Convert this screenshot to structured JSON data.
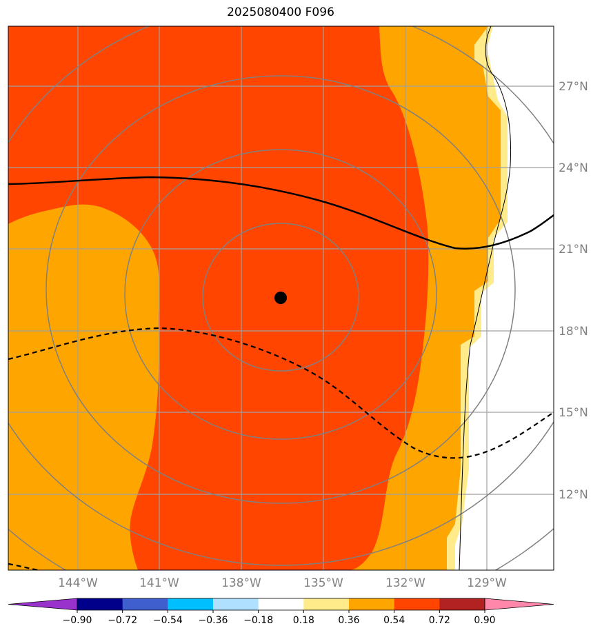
{
  "title": "2025080400 F096",
  "colors": {
    "background_white": "#ffffff",
    "orange": "#ffa500",
    "orange_red": "#ff4500",
    "light_yellow": "#ffeb8a",
    "grid": "#a0a0a0",
    "rings": "#808080",
    "contour": "#000000"
  },
  "map": {
    "lon_labels": [
      "144°W",
      "141°W",
      "138°W",
      "135°W",
      "132°W",
      "129°W"
    ],
    "lat_labels": [
      "27°N",
      "24°N",
      "21°N",
      "18°N",
      "15°N",
      "12°N"
    ],
    "center_marker": "storm-center"
  },
  "colorbar": {
    "ticks": [
      "−0.90",
      "−0.72",
      "−0.54",
      "−0.36",
      "−0.18",
      "0.18",
      "0.36",
      "0.54",
      "0.72",
      "0.90"
    ],
    "segment_colors": [
      "#9932cc",
      "#00008b",
      "#3f5fcf",
      "#00bfff",
      "#b0e0ff",
      "#ffffff",
      "#ffeb8a",
      "#ffa500",
      "#ff4500",
      "#b22222",
      "#ff88aa"
    ]
  }
}
